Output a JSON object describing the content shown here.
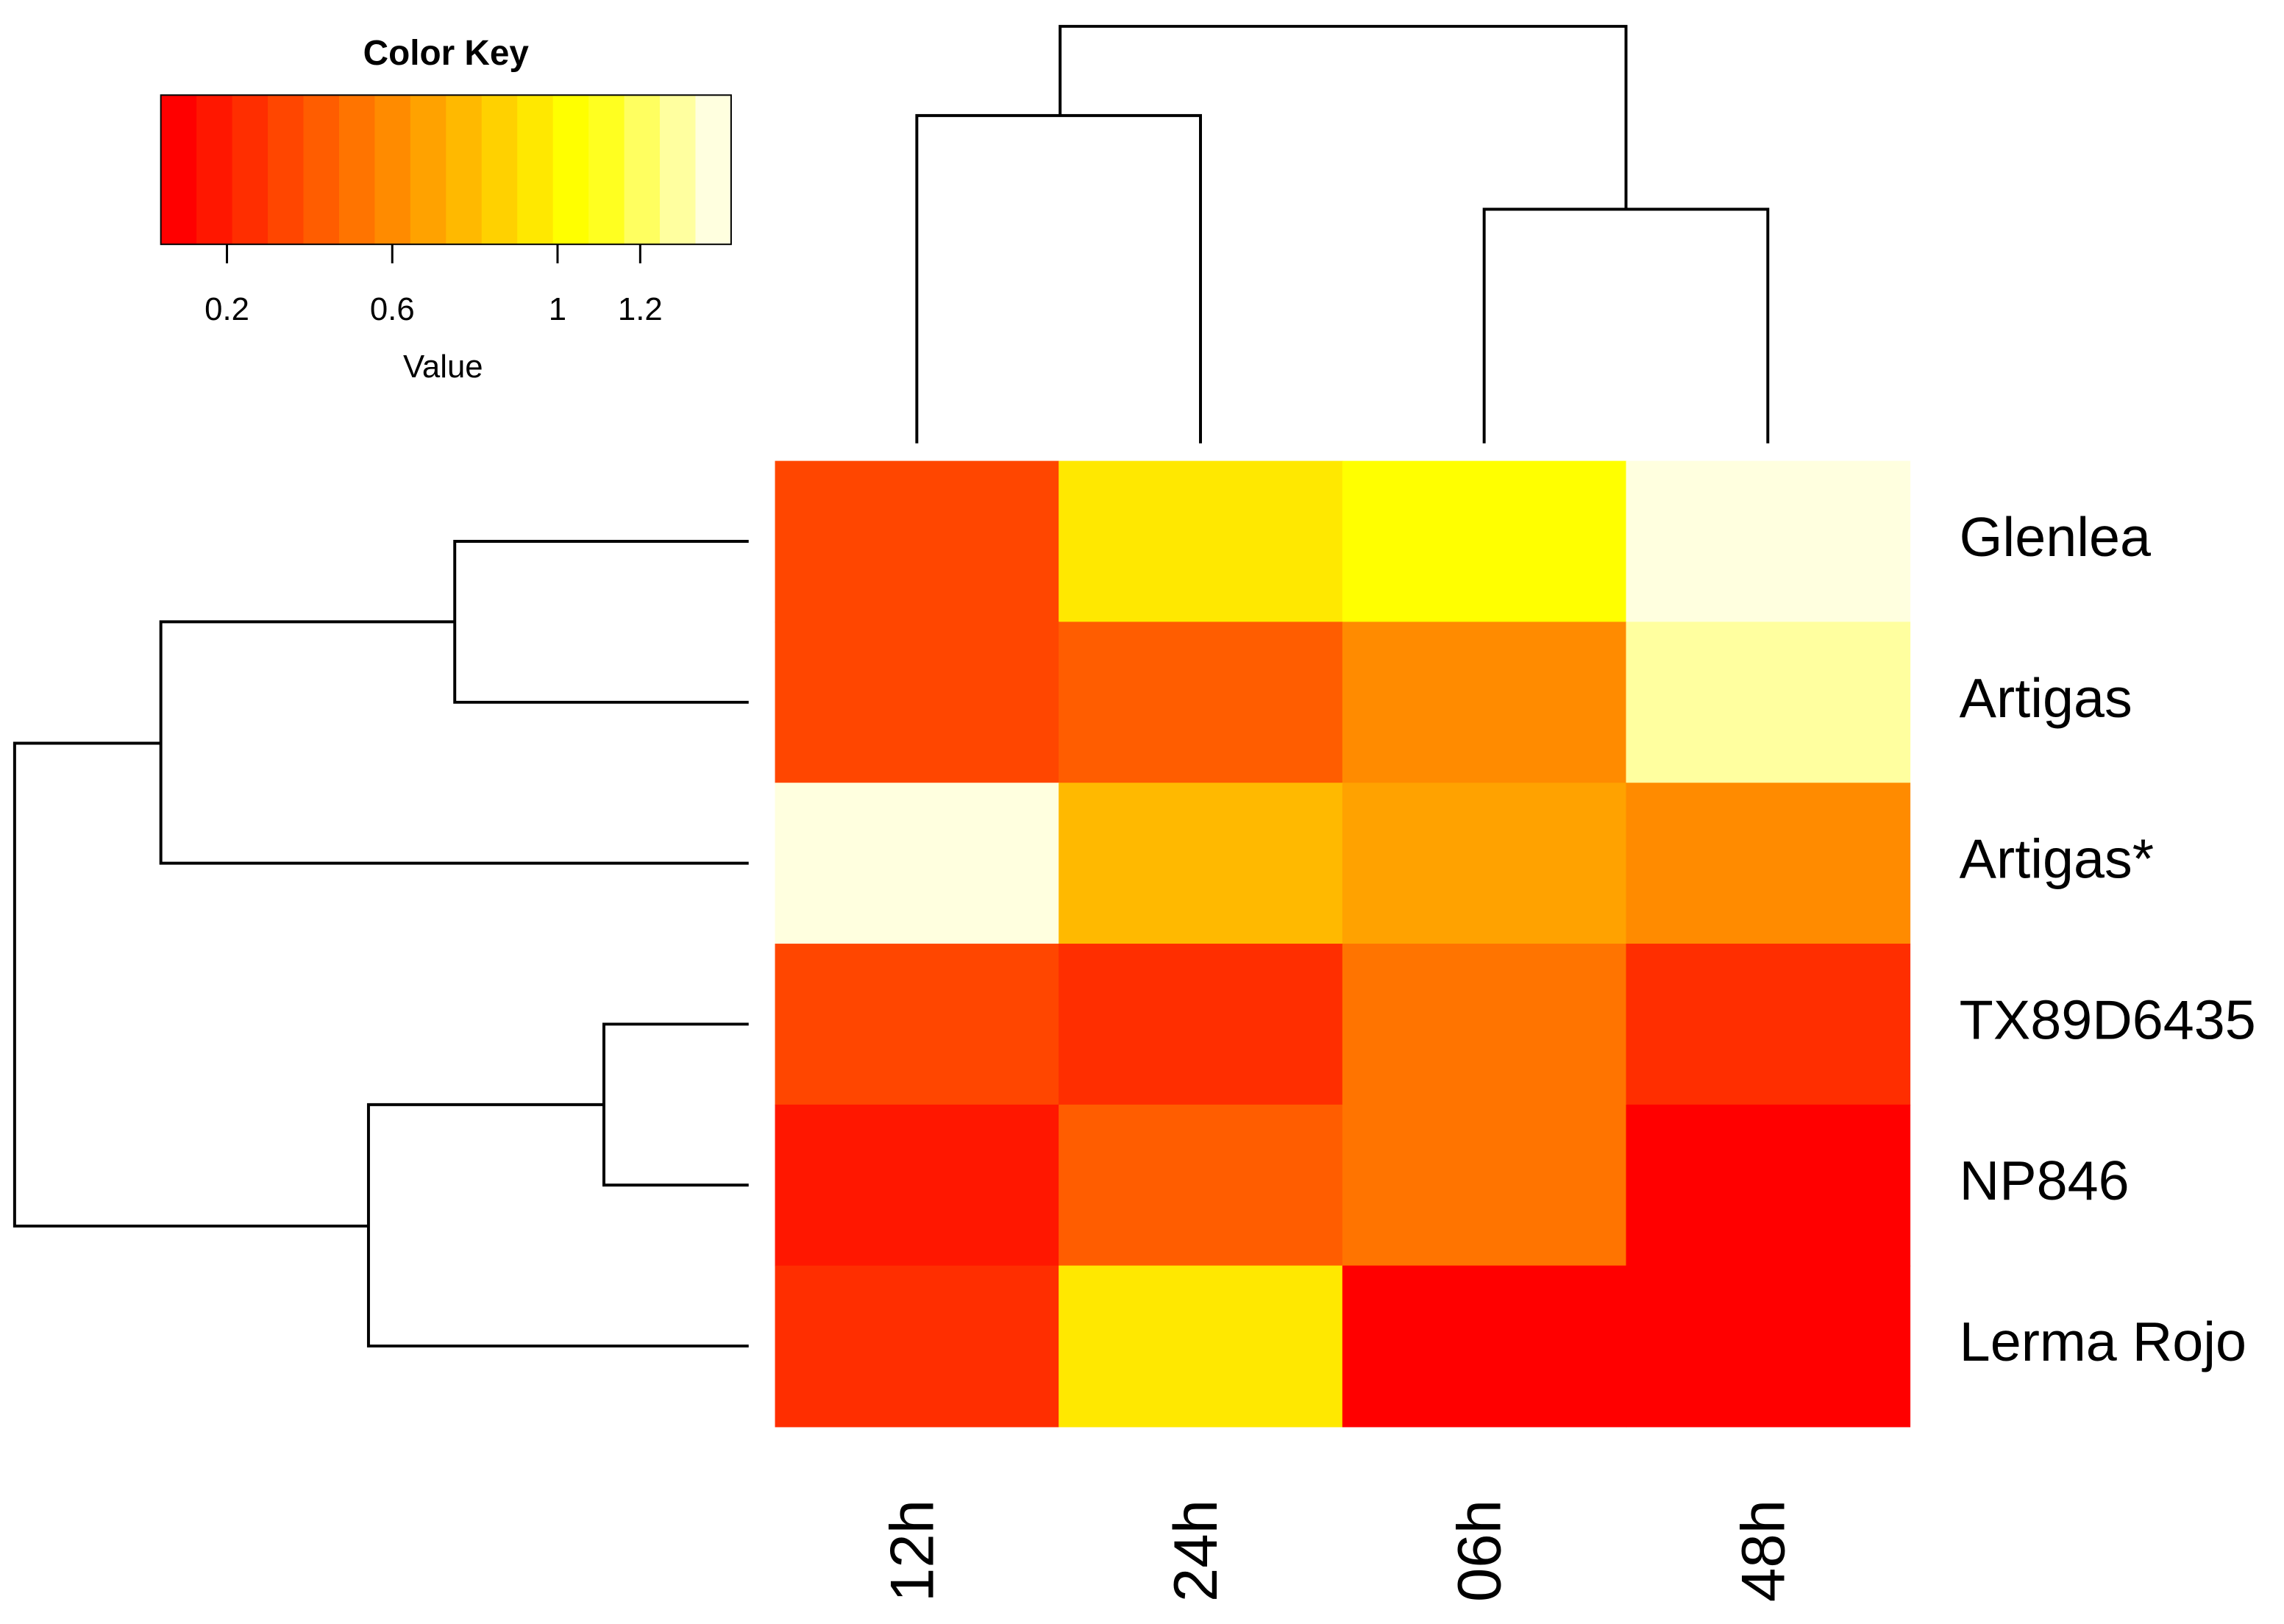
{
  "chart_data": {
    "type": "heatmap",
    "title": "Color Key",
    "xlabel": "Value",
    "xlim": [
      0.04,
      1.42
    ],
    "xticks": [
      0.2,
      0.6,
      1,
      1.2
    ],
    "colors": [
      "#FF0000",
      "#FF1700",
      "#FF2E00",
      "#FF4600",
      "#FF5D00",
      "#FF7400",
      "#FF8B00",
      "#FFA200",
      "#FFB900",
      "#FFD100",
      "#FFE800",
      "#FFFF00",
      "#FFFF20",
      "#FFFF60",
      "#FFFF9F",
      "#FFFFDF"
    ],
    "rows": [
      "Glenlea",
      "Artigas",
      "Artigas*",
      "TX89D6435",
      "NP846",
      "Lerma Rojo"
    ],
    "columns": [
      "12h",
      "24h",
      "06h",
      "48h"
    ],
    "values": [
      [
        0.34,
        0.94,
        1.03,
        1.37
      ],
      [
        0.34,
        0.43,
        0.6,
        1.29
      ],
      [
        1.37,
        0.77,
        0.69,
        0.6
      ],
      [
        0.34,
        0.26,
        0.51,
        0.26
      ],
      [
        0.17,
        0.43,
        0.51,
        0.08
      ],
      [
        0.26,
        0.94,
        0.08,
        0.08
      ]
    ]
  }
}
